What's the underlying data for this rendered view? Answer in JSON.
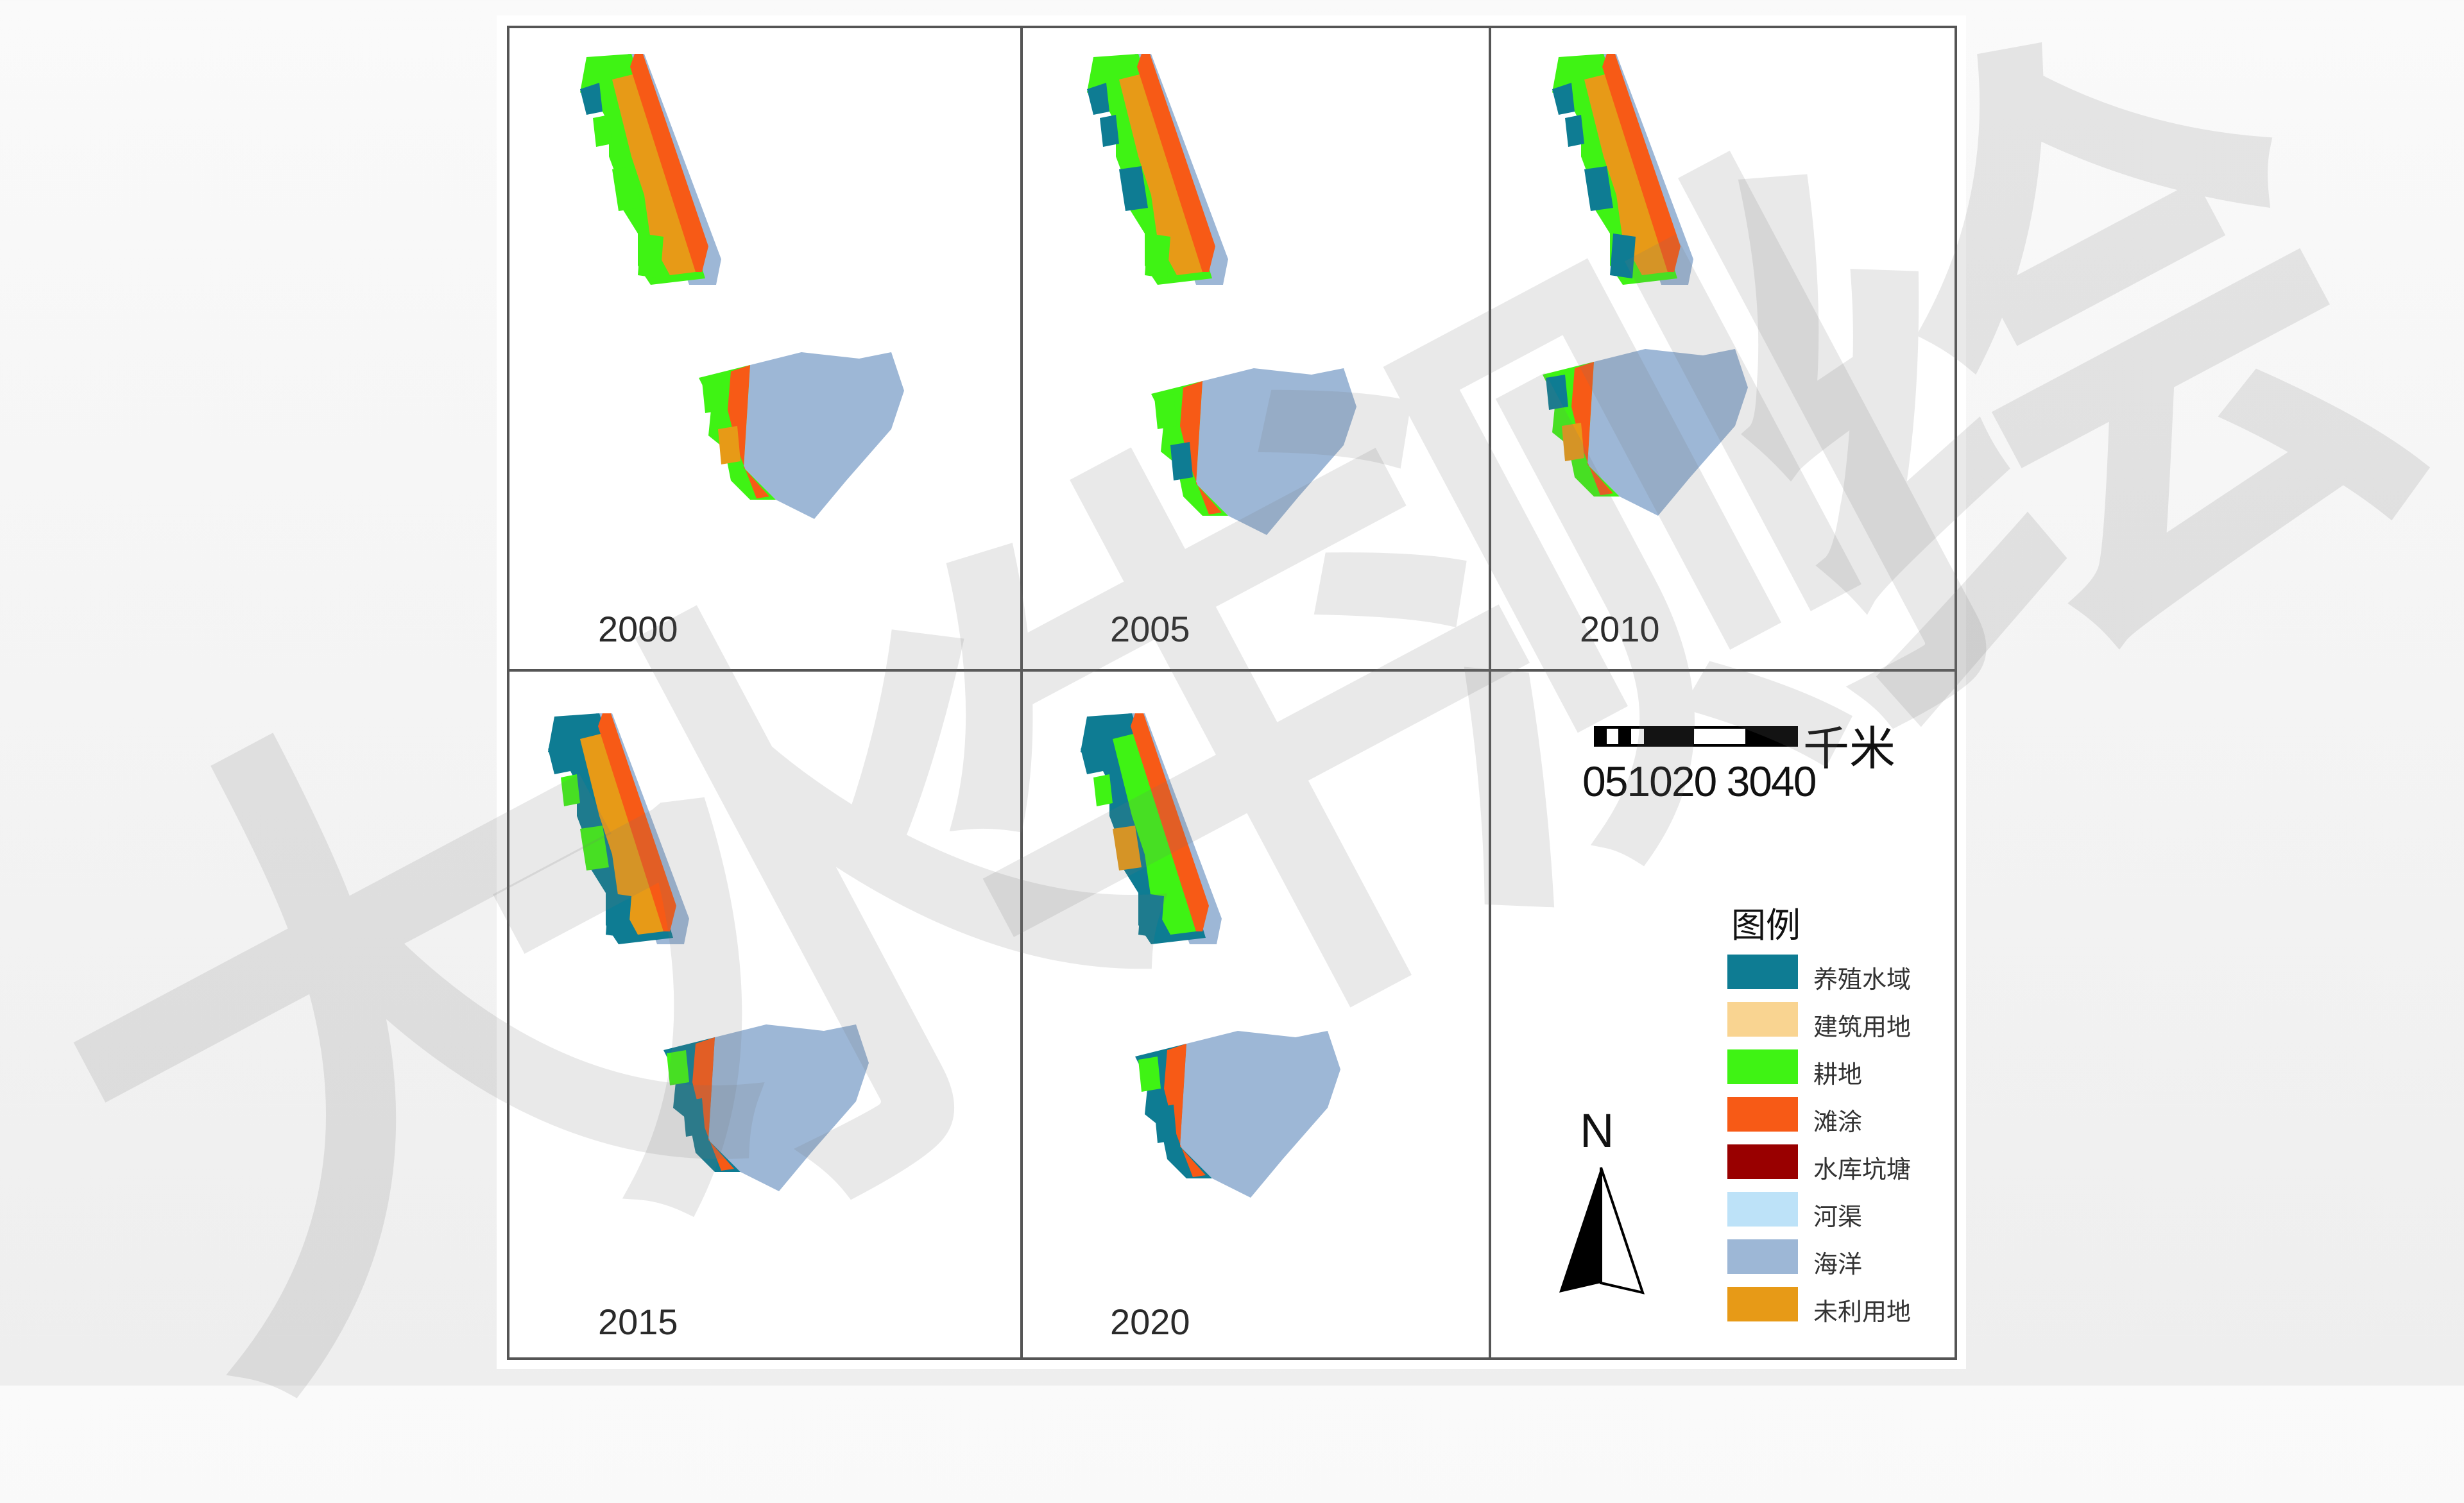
{
  "panels": [
    {
      "year": "2000"
    },
    {
      "year": "2005"
    },
    {
      "year": "2010"
    },
    {
      "year": "2015"
    },
    {
      "year": "2020"
    }
  ],
  "scale": {
    "unit": "千米",
    "ticks": "0 5 10 20 30 40",
    "tick_text": "051020 3040"
  },
  "north": {
    "label": "N"
  },
  "legend": {
    "title": "图例",
    "items": [
      {
        "label": "养殖水域",
        "color": "#0e7c93"
      },
      {
        "label": "建筑用地",
        "color": "#f9d491"
      },
      {
        "label": "耕地",
        "color": "#3ff314"
      },
      {
        "label": "滩涂",
        "color": "#f75a16"
      },
      {
        "label": "水库坑塘",
        "color": "#990000"
      },
      {
        "label": "河渠",
        "color": "#bde2f8"
      },
      {
        "label": "海洋",
        "color": "#9db7d6"
      },
      {
        "label": "未利用地",
        "color": "#e79a17"
      }
    ]
  },
  "watermark": {
    "text": "大水牛测绘"
  }
}
